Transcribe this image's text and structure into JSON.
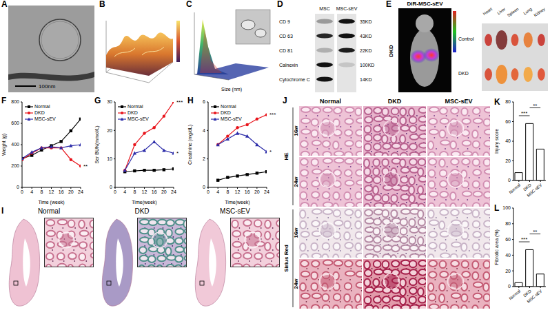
{
  "chart_data": [
    {
      "label": "F",
      "type": "line",
      "x": [
        0,
        4,
        8,
        12,
        16,
        20,
        24
      ],
      "x_label": "Time (week)",
      "y_label": "Weight (g)",
      "xlim": [
        0,
        24
      ],
      "xticks": [
        0,
        4,
        8,
        12,
        16,
        20,
        24
      ],
      "ylim": [
        0,
        800
      ],
      "yticks": [
        0,
        200,
        400,
        600,
        800
      ],
      "legend": "upper left",
      "annotations": [
        "**"
      ],
      "series": [
        {
          "name": "Normal",
          "color": "#000000",
          "marker": "square",
          "values": [
            270,
            300,
            350,
            390,
            430,
            530,
            640
          ]
        },
        {
          "name": "DKD",
          "color": "#e8141b",
          "marker": "circle",
          "values": [
            260,
            320,
            370,
            370,
            370,
            260,
            200
          ]
        },
        {
          "name": "MSC-sEV",
          "color": "#2a2aa8",
          "marker": "triangle",
          "values": [
            270,
            330,
            370,
            380,
            370,
            390,
            400
          ]
        }
      ]
    },
    {
      "label": "G",
      "type": "line",
      "x": [
        4,
        8,
        12,
        16,
        20,
        24
      ],
      "x_label": "Time(week)",
      "y_label": "Ser BUN(mmol/L)",
      "xlim": [
        0,
        24
      ],
      "xticks": [
        0,
        4,
        8,
        12,
        16,
        20,
        24
      ],
      "ylim": [
        0,
        30
      ],
      "yticks": [
        0,
        10,
        20,
        30
      ],
      "legend": "upper left",
      "annotations": [
        "***",
        "*"
      ],
      "series": [
        {
          "name": "Normal",
          "color": "#000000",
          "marker": "square",
          "values": [
            5.5,
            5.8,
            6,
            6,
            6.2,
            6.5
          ]
        },
        {
          "name": "DKD",
          "color": "#e8141b",
          "marker": "circle",
          "values": [
            6,
            15,
            19,
            21,
            25,
            30
          ]
        },
        {
          "name": "MSC-sEV",
          "color": "#2a2aa8",
          "marker": "triangle",
          "values": [
            6,
            12,
            13,
            16,
            13,
            12
          ]
        }
      ]
    },
    {
      "label": "H",
      "type": "line",
      "x": [
        4,
        8,
        12,
        16,
        20,
        24
      ],
      "x_label": "Time(week)",
      "y_label": "Creatinine (mg/dL)",
      "xlim": [
        0,
        24
      ],
      "xticks": [
        0,
        4,
        8,
        12,
        16,
        20,
        24
      ],
      "ylim": [
        0,
        6
      ],
      "yticks": [
        0,
        2,
        4,
        6
      ],
      "legend": "upper left",
      "annotations": [
        "***",
        "*"
      ],
      "series": [
        {
          "name": "Normal",
          "color": "#000000",
          "marker": "square",
          "values": [
            0.5,
            0.7,
            0.8,
            0.9,
            1.0,
            1.1
          ]
        },
        {
          "name": "DKD",
          "color": "#e8141b",
          "marker": "circle",
          "values": [
            3.0,
            3.6,
            4.2,
            4.4,
            4.8,
            5.1
          ]
        },
        {
          "name": "MSC-sEV",
          "color": "#2a2aa8",
          "marker": "triangle",
          "values": [
            3.0,
            3.4,
            3.8,
            3.6,
            3.0,
            2.5
          ]
        }
      ]
    },
    {
      "label": "K",
      "type": "bar",
      "categories": [
        "Normal",
        "DKD",
        "MSC-sEV"
      ],
      "values": [
        8,
        58,
        32
      ],
      "color": "#ffffff",
      "y_label": "Injury score",
      "ylim": [
        0,
        80
      ],
      "yticks": [
        0,
        20,
        40,
        60,
        80
      ],
      "annotations": [
        {
          "text": "***",
          "between": [
            "Normal",
            "DKD"
          ]
        },
        {
          "text": "**",
          "between": [
            "DKD",
            "MSC-sEV"
          ]
        }
      ]
    },
    {
      "label": "L",
      "type": "bar",
      "categories": [
        "Normal",
        "DKD",
        "MSC-sEV"
      ],
      "values": [
        5,
        47,
        16
      ],
      "color": "#ffffff",
      "y_label": "Fibrotic area (%)",
      "ylim": [
        0,
        100
      ],
      "yticks": [
        0,
        20,
        40,
        60,
        80,
        100
      ],
      "annotations": [
        {
          "text": "***",
          "between": [
            "Normal",
            "DKD"
          ]
        },
        {
          "text": "**",
          "between": [
            "DKD",
            "MSC-sEV"
          ]
        }
      ]
    }
  ],
  "figure": {
    "A": {
      "label": "A",
      "scale_bar": "100nm"
    },
    "B": {
      "label": "B"
    },
    "C": {
      "label": "C",
      "x_label": "Size (nm)"
    },
    "D": {
      "label": "D",
      "columns": [
        "MSC",
        "MSC-sEV"
      ],
      "rows": [
        {
          "name": "CD 9",
          "size": "35KD"
        },
        {
          "name": "CD 63",
          "size": "43KD"
        },
        {
          "name": "CD 81",
          "size": "22KD"
        },
        {
          "name": "Calnexin",
          "size": "100KD"
        },
        {
          "name": "Cytochrome C",
          "size": "14KD"
        }
      ]
    },
    "E": {
      "label": "E",
      "title": "DiR-MSC-sEV",
      "group": "DKD",
      "organs": [
        "Heart",
        "Liver",
        "Spleen",
        "Lung",
        "Kidney"
      ],
      "rows": [
        "Control",
        "DKD"
      ]
    },
    "I": {
      "label": "I",
      "columns": [
        "Normal",
        "DKD",
        "MSC-sEV"
      ]
    },
    "J": {
      "label": "J",
      "columns": [
        "Normal",
        "DKD",
        "MSC-sEV"
      ],
      "stains": [
        {
          "name": "HE",
          "rows": [
            "16w",
            "24w"
          ]
        },
        {
          "name": "Sirius Red",
          "rows": [
            "16w",
            "24w"
          ]
        }
      ]
    }
  }
}
